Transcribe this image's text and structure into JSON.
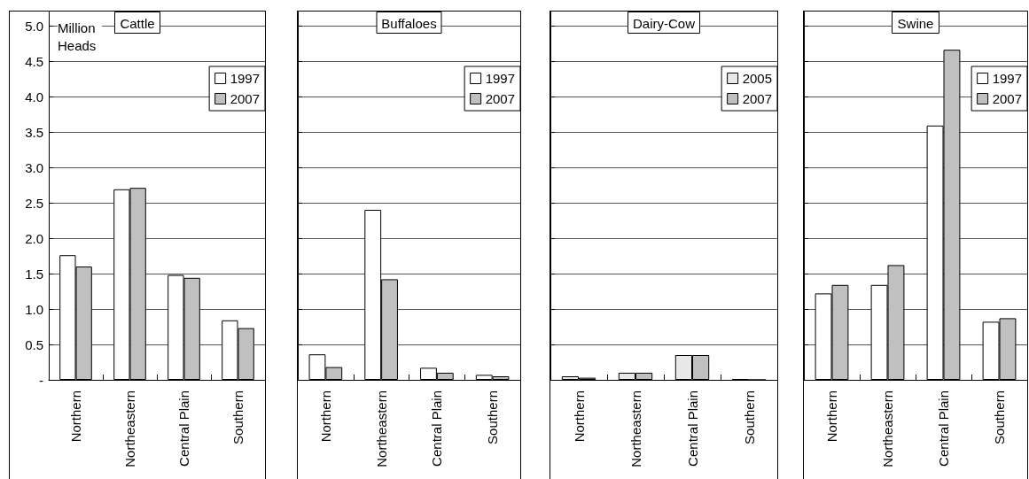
{
  "chart_data": [
    {
      "type": "bar",
      "title": "Cattle",
      "ylabel": "Million Heads",
      "categories": [
        "Northern",
        "Northeastern",
        "Central Plain",
        "Southern"
      ],
      "series": [
        {
          "name": "1997",
          "color": "#ffffff",
          "values": [
            1.76,
            2.69,
            1.48,
            0.84
          ]
        },
        {
          "name": "2007",
          "color": "#c0c0c0",
          "values": [
            1.6,
            2.71,
            1.44,
            0.73
          ]
        }
      ],
      "ylim": [
        0,
        5.2
      ],
      "yticks": [
        {
          "value": 0,
          "label": "-"
        },
        0.5,
        {
          "value": 1,
          "label": "1.0"
        },
        1.5,
        {
          "value": 2,
          "label": "2.0"
        },
        2.5,
        {
          "value": 3,
          "label": "3.0"
        },
        3.5,
        {
          "value": 4,
          "label": "4.0"
        },
        4.5,
        {
          "value": 5,
          "label": "5.0"
        }
      ],
      "grid": "y",
      "legend": "top right"
    },
    {
      "type": "bar",
      "title": "Buffaloes",
      "categories": [
        "Northern",
        "Northeastern",
        "Central Plain",
        "Southern"
      ],
      "series": [
        {
          "name": "1997",
          "color": "#ffffff",
          "values": [
            0.36,
            2.4,
            0.17,
            0.07
          ]
        },
        {
          "name": "2007",
          "color": "#c0c0c0",
          "values": [
            0.18,
            1.42,
            0.1,
            0.05
          ]
        }
      ],
      "ylim": [
        0,
        5.2
      ],
      "yticks": [
        0,
        0.5,
        1,
        1.5,
        2,
        2.5,
        3,
        3.5,
        4,
        4.5,
        5
      ],
      "grid": "y",
      "legend": "top right",
      "tick_labels": "x"
    },
    {
      "type": "bar",
      "title": "Dairy-Cow",
      "categories": [
        "Northern",
        "Northeastern",
        "Central Plain",
        "Southern"
      ],
      "series": [
        {
          "name": "2005",
          "color": "#e8e8e8",
          "values": [
            0.05,
            0.1,
            0.35,
            0.01
          ]
        },
        {
          "name": "2007",
          "color": "#c0c0c0",
          "values": [
            0.03,
            0.1,
            0.35,
            0
          ]
        }
      ],
      "ylim": [
        0,
        5.2
      ],
      "yticks": [
        0,
        0.5,
        1,
        1.5,
        2,
        2.5,
        3,
        3.5,
        4,
        4.5,
        5
      ],
      "grid": "y",
      "legend": "top right",
      "tick_labels": "x"
    },
    {
      "type": "bar",
      "title": "Swine",
      "categories": [
        "Northern",
        "Northeastern",
        "Central Plain",
        "Southern"
      ],
      "series": [
        {
          "name": "1997",
          "color": "#ffffff",
          "values": [
            1.22,
            1.34,
            3.59,
            0.82
          ]
        },
        {
          "name": "2007",
          "color": "#c0c0c0",
          "values": [
            1.34,
            1.62,
            4.66,
            0.87
          ]
        }
      ],
      "ylim": [
        0,
        5.2
      ],
      "yticks": [
        0,
        0.5,
        1,
        1.5,
        2,
        2.5,
        3,
        3.5,
        4,
        4.5,
        5
      ],
      "grid": "y",
      "legend": "top right",
      "tick_labels": "x"
    }
  ]
}
